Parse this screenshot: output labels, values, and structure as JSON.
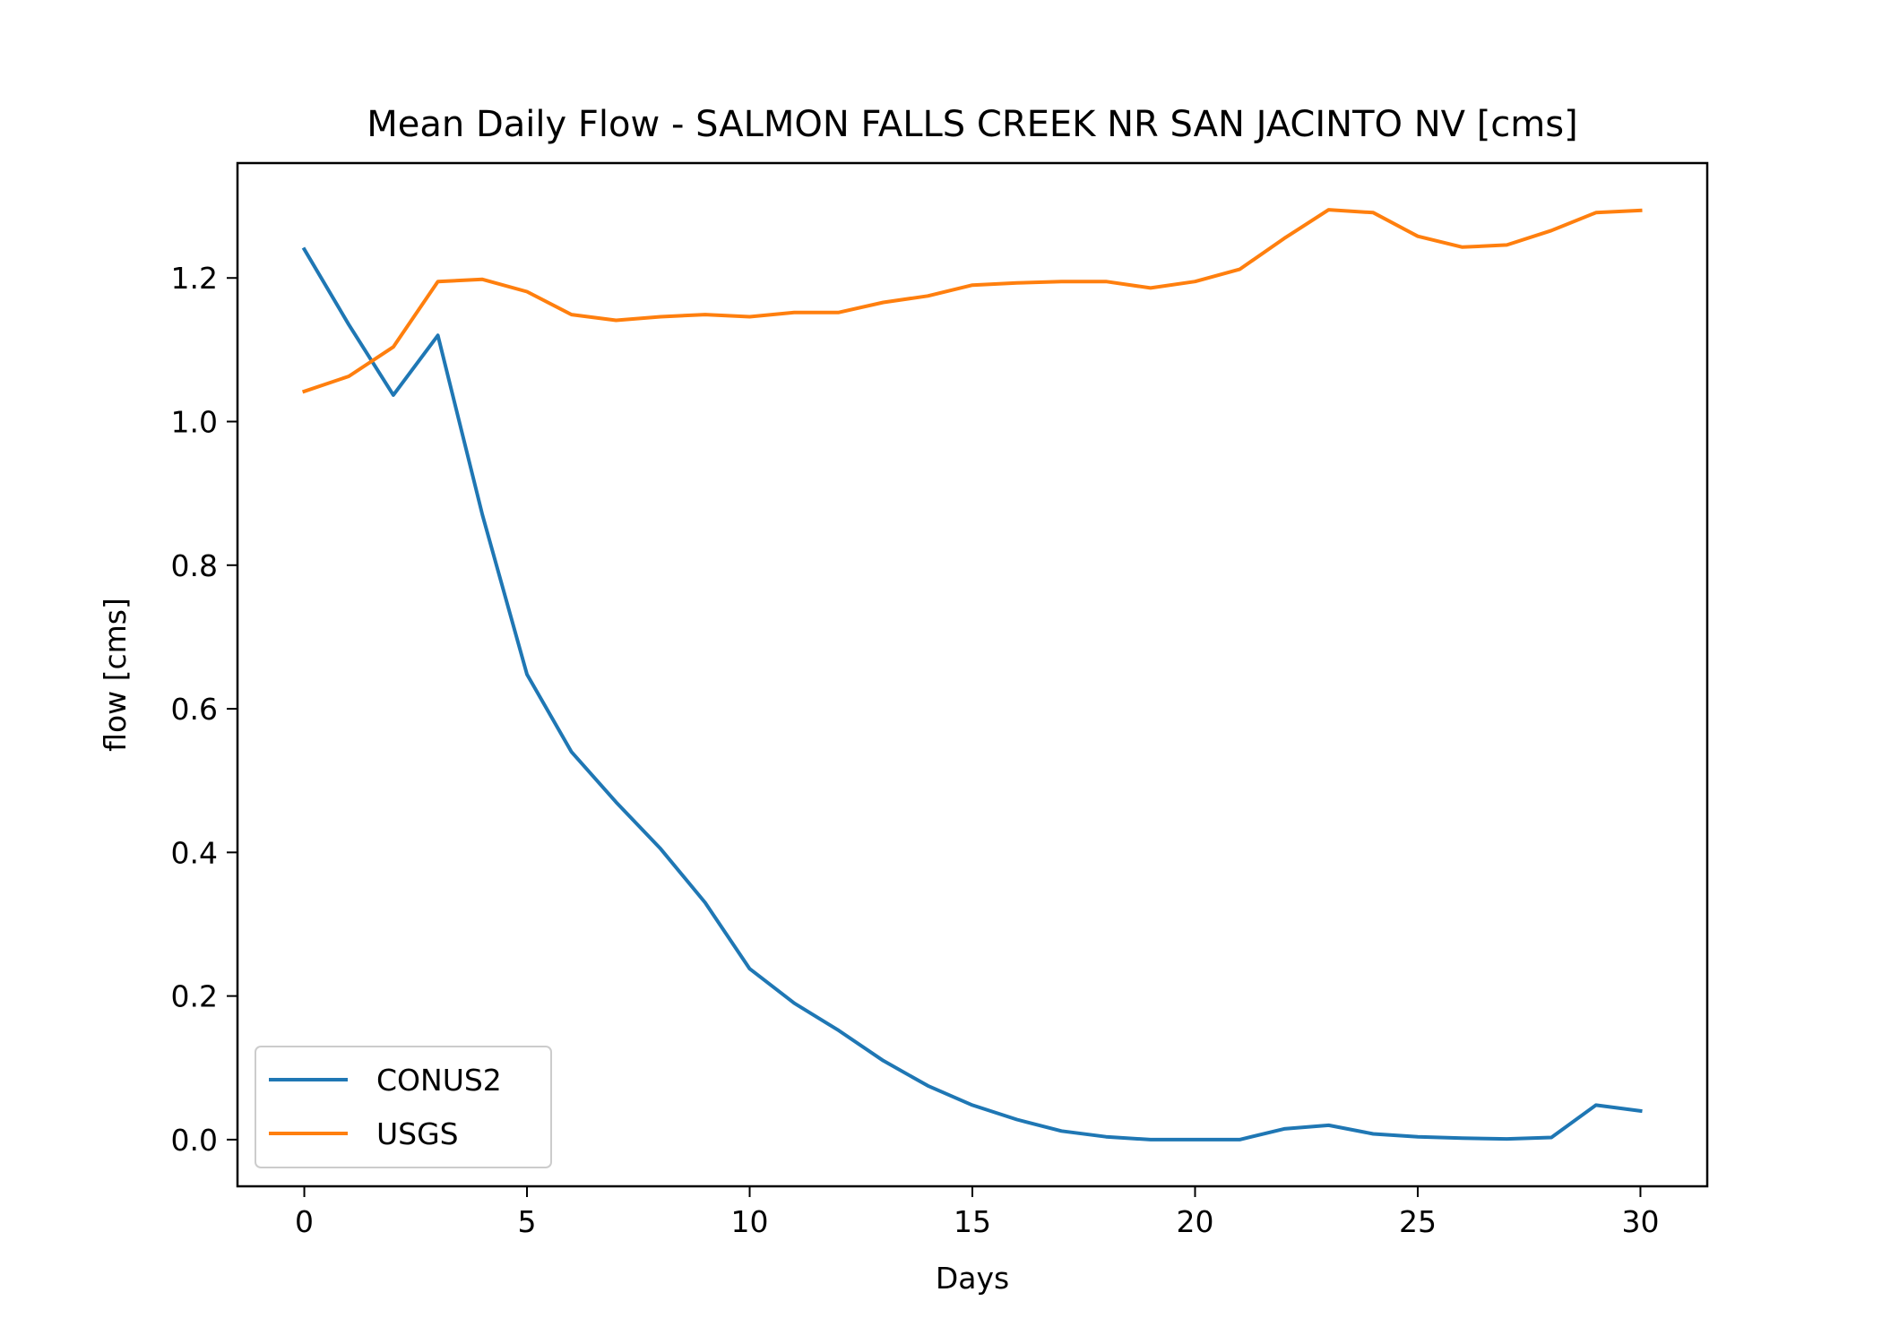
{
  "chart_data": {
    "type": "line",
    "title": "Mean Daily Flow - SALMON FALLS CREEK NR SAN JACINTO NV [cms]",
    "xlabel": "Days",
    "ylabel": "flow [cms]",
    "xlim": [
      -1.5,
      31.5
    ],
    "ylim": [
      -0.065,
      1.36
    ],
    "xticks": [
      0,
      5,
      10,
      15,
      20,
      25,
      30
    ],
    "xtick_labels": [
      "0",
      "5",
      "10",
      "15",
      "20",
      "25",
      "30"
    ],
    "yticks": [
      0.0,
      0.2,
      0.4,
      0.6,
      0.8,
      1.0,
      1.2
    ],
    "ytick_labels": [
      "0.0",
      "0.2",
      "0.4",
      "0.6",
      "0.8",
      "1.0",
      "1.2"
    ],
    "grid": false,
    "legend_position": "lower-left",
    "x": [
      0,
      1,
      2,
      3,
      4,
      5,
      6,
      7,
      8,
      9,
      10,
      11,
      12,
      13,
      14,
      15,
      16,
      17,
      18,
      19,
      20,
      21,
      22,
      23,
      24,
      25,
      26,
      27,
      28,
      29,
      30
    ],
    "series": [
      {
        "name": "CONUS2",
        "color": "#1f77b4",
        "values": [
          1.24,
          1.135,
          1.037,
          1.12,
          0.87,
          0.648,
          0.54,
          0.47,
          0.405,
          0.33,
          0.238,
          0.19,
          0.152,
          0.11,
          0.075,
          0.048,
          0.028,
          0.012,
          0.004,
          0.0,
          0.0,
          0.0,
          0.015,
          0.02,
          0.008,
          0.004,
          0.002,
          0.001,
          0.003,
          0.048,
          0.04
        ]
      },
      {
        "name": "USGS",
        "color": "#ff7f0e",
        "values": [
          1.042,
          1.063,
          1.104,
          1.195,
          1.198,
          1.181,
          1.149,
          1.141,
          1.146,
          1.149,
          1.146,
          1.152,
          1.152,
          1.166,
          1.175,
          1.19,
          1.193,
          1.195,
          1.195,
          1.186,
          1.195,
          1.212,
          1.255,
          1.295,
          1.291,
          1.258,
          1.243,
          1.246,
          1.266,
          1.291,
          1.294
        ]
      }
    ]
  }
}
